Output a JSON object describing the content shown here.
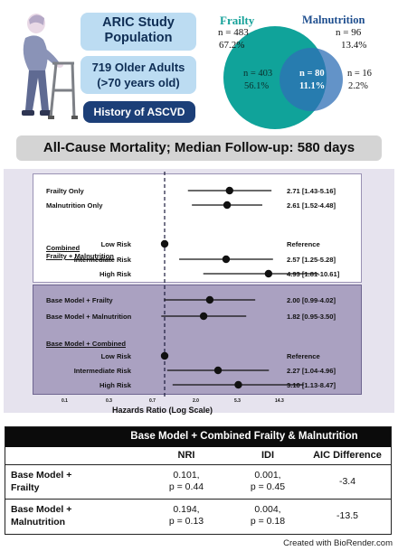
{
  "header": {
    "study_title": "ARIC Study Population",
    "population_line1": "719 Older Adults",
    "population_line2": "(>70 years old)",
    "history_label": "History of ASCVD"
  },
  "venn": {
    "frailty_label": "Frailty",
    "frailty_n": "n = 483",
    "frailty_pct": "67.2%",
    "malnutrition_label": "Malnutrition",
    "malnutrition_n": "n = 96",
    "malnutrition_pct": "13.4%",
    "frailty_only_n": "n = 403",
    "frailty_only_pct": "56.1%",
    "overlap_n": "n = 80",
    "overlap_pct": "11.1%",
    "malnutrition_only_n": "n = 16",
    "malnutrition_only_pct": "2.2%",
    "colors": {
      "frailty": "#10a39a",
      "malnutrition": "#2f6fb6",
      "overlap": "#3d83c8"
    }
  },
  "banner": "All-Cause Mortality; Median Follow-up: 580 days",
  "forest": {
    "chart_data": {
      "type": "scatter",
      "xlabel": "Hazards Ratio (Log Scale)",
      "x_scale": "log",
      "xticks": [
        "0.1",
        "0.3",
        "0.7",
        "2.0",
        "5.3",
        "14.3"
      ],
      "reference_line": 1.0,
      "top_section": {
        "group_heading": [
          "Combined",
          "Frailty + Malnutrition"
        ],
        "rows": [
          {
            "label": "Frailty Only",
            "hr": 2.71,
            "lo": 1.43,
            "hi": 5.16,
            "text": "2.71 [1.43-5.16]"
          },
          {
            "label": "Malnutrition Only",
            "hr": 2.61,
            "lo": 1.52,
            "hi": 4.48,
            "text": "2.61 [1.52-4.48]"
          },
          {
            "label": "Low Risk",
            "hr": 1.0,
            "lo": 1.0,
            "hi": 1.0,
            "text": "Reference"
          },
          {
            "label": "Intermediate Risk",
            "hr": 2.57,
            "lo": 1.25,
            "hi": 5.28,
            "text": "2.57 [1.25-5.28]"
          },
          {
            "label": "High Risk",
            "hr": 4.93,
            "lo": 1.81,
            "hi": 10.61,
            "text": "4.93 [1.81-10.61]"
          }
        ]
      },
      "bottom_section": {
        "group_heading": "Base Model + Combined",
        "rows": [
          {
            "label": "Base Model + Frailty",
            "hr": 2.0,
            "lo": 0.99,
            "hi": 4.02,
            "text": "2.00 [0.99-4.02]"
          },
          {
            "label": "Base Model + Malnutrition",
            "hr": 1.82,
            "lo": 0.95,
            "hi": 3.5,
            "text": "1.82 [0.95-3.50]"
          },
          {
            "label": "Low Risk",
            "hr": 1.0,
            "lo": 1.0,
            "hi": 1.0,
            "text": "Reference"
          },
          {
            "label": "Intermediate Risk",
            "hr": 2.27,
            "lo": 1.04,
            "hi": 4.96,
            "text": "2.27 [1.04-4.96]"
          },
          {
            "label": "High Risk",
            "hr": 3.1,
            "lo": 1.13,
            "hi": 8.47,
            "text": "3.10 [1.13-8.47]"
          }
        ]
      }
    }
  },
  "table": {
    "title": "Base Model + Combined Frailty & Malnutrition",
    "col_nri": "NRI",
    "col_idi": "IDI",
    "col_aic": "AIC Difference",
    "rows": [
      {
        "label_line1": "Base Model +",
        "label_line2": "Frailty",
        "nri_line1": "0.101,",
        "nri_line2": "p = 0.44",
        "idi_line1": "0.001,",
        "idi_line2": "p = 0.45",
        "aic": "-3.4"
      },
      {
        "label_line1": "Base Model +",
        "label_line2": "Malnutrition",
        "nri_line1": "0.194,",
        "nri_line2": "p = 0.13",
        "idi_line1": "0.004,",
        "idi_line2": "p = 0.18",
        "aic": "-13.5"
      }
    ]
  },
  "footer": "Created with BioRender.com"
}
